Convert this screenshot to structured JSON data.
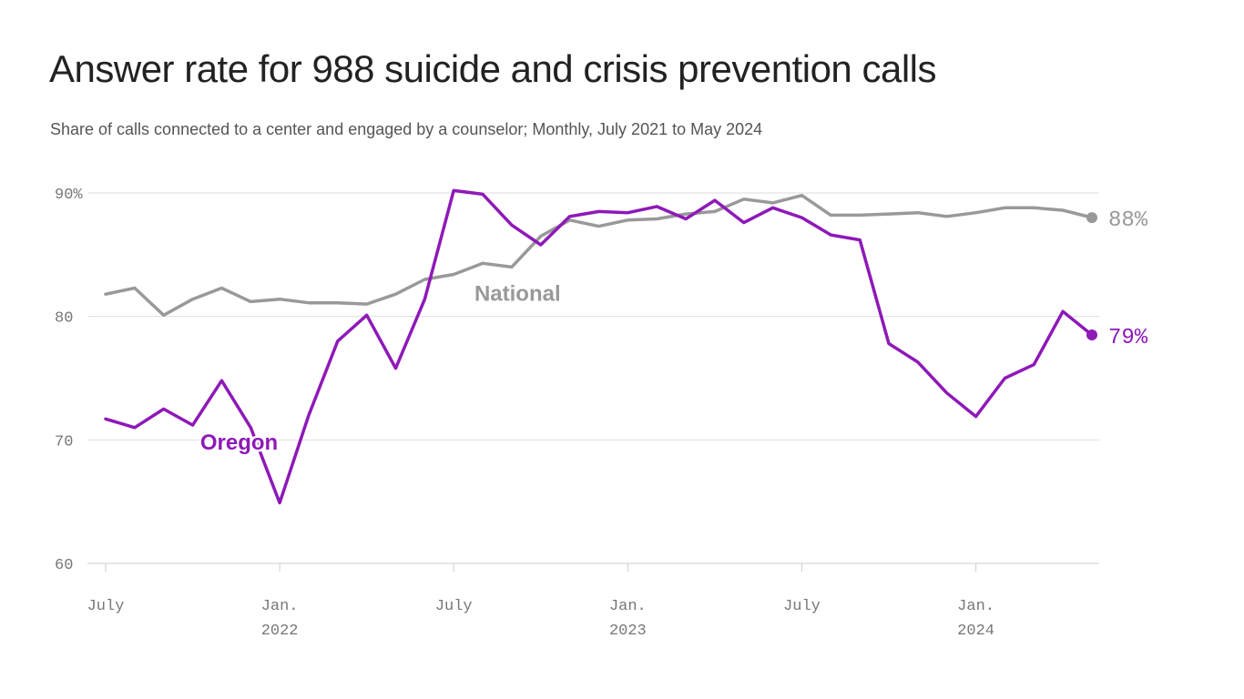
{
  "chart_data": {
    "type": "line",
    "title": "Answer rate for 988 suicide and crisis prevention calls",
    "subtitle": "Share of calls connected to a center and engaged by a counselor; Monthly, July 2021 to May 2024",
    "xlabel": "",
    "ylabel": "",
    "ylim": [
      60,
      90
    ],
    "y_ticks": [
      "90%",
      "80",
      "70",
      "60"
    ],
    "x_ticks": [
      {
        "month": "July",
        "year": ""
      },
      {
        "month": "Jan.",
        "year": "2022"
      },
      {
        "month": "July",
        "year": ""
      },
      {
        "month": "Jan.",
        "year": "2023"
      },
      {
        "month": "July",
        "year": ""
      },
      {
        "month": "Jan.",
        "year": "2024"
      }
    ],
    "categories": [
      "Jul 2021",
      "Aug 2021",
      "Sep 2021",
      "Oct 2021",
      "Nov 2021",
      "Dec 2021",
      "Jan 2022",
      "Feb 2022",
      "Mar 2022",
      "Apr 2022",
      "May 2022",
      "Jun 2022",
      "Jul 2022",
      "Aug 2022",
      "Sep 2022",
      "Oct 2022",
      "Nov 2022",
      "Dec 2022",
      "Jan 2023",
      "Feb 2023",
      "Mar 2023",
      "Apr 2023",
      "May 2023",
      "Jun 2023",
      "Jul 2023",
      "Aug 2023",
      "Sep 2023",
      "Oct 2023",
      "Nov 2023",
      "Dec 2023",
      "Jan 2024",
      "Feb 2024",
      "Mar 2024",
      "Apr 2024",
      "May 2024"
    ],
    "series": [
      {
        "name": "National",
        "color": "#999999",
        "end_label": "88%",
        "values": [
          81.8,
          82.3,
          80.1,
          81.4,
          82.3,
          81.2,
          81.4,
          81.1,
          81.1,
          81.0,
          81.8,
          83.0,
          83.4,
          84.3,
          84.0,
          86.5,
          87.8,
          87.3,
          87.8,
          87.9,
          88.3,
          88.5,
          89.5,
          89.2,
          89.8,
          88.2,
          88.2,
          88.3,
          88.4,
          88.1,
          88.4,
          88.8,
          88.8,
          88.6,
          88.0
        ]
      },
      {
        "name": "Oregon",
        "color": "#8E19B8",
        "end_label": "79%",
        "values": [
          71.7,
          71.0,
          72.5,
          71.2,
          74.8,
          71.0,
          64.9,
          72.0,
          78.0,
          80.1,
          75.8,
          81.4,
          90.2,
          89.9,
          87.4,
          85.8,
          88.1,
          88.5,
          88.4,
          88.9,
          87.9,
          89.4,
          87.6,
          88.8,
          88.0,
          86.6,
          86.2,
          77.8,
          76.3,
          73.8,
          71.9,
          75.0,
          76.1,
          80.4,
          78.5
        ]
      }
    ]
  }
}
